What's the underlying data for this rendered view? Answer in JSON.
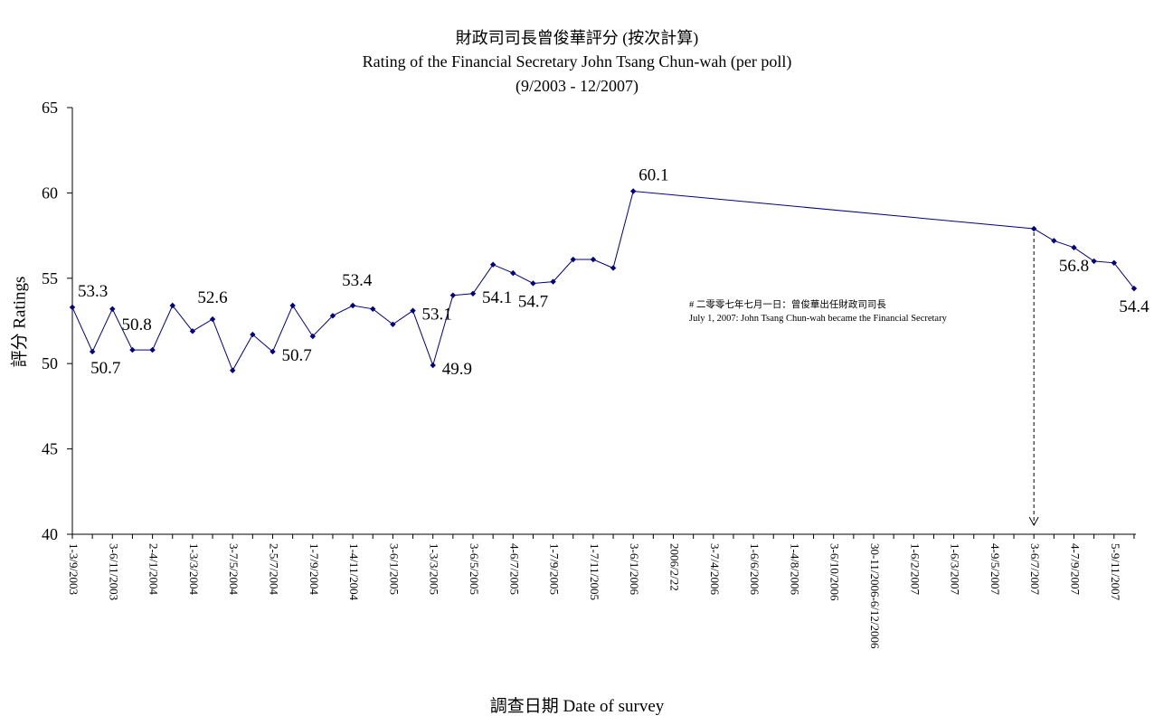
{
  "chart_data": {
    "type": "line",
    "title": "財政司司長曾俊華評分 (按次計算)",
    "subtitle": "Rating of the Financial Secretary John Tsang Chun-wah (per poll)",
    "period": "(9/2003 - 12/2007)",
    "xlabel": "調查日期 Date of survey",
    "ylabel": "評分 Ratings",
    "ylim": [
      40,
      65
    ],
    "y_ticks": [
      40,
      45,
      50,
      55,
      60,
      65
    ],
    "x_tick_labels": [
      "1-3/9/2003",
      "3-6/11/2003",
      "2-4/1/2004",
      "1-3/3/2004",
      "3-7/5/2004",
      "2-5/7/2004",
      "1-7/9/2004",
      "1-4/11/2004",
      "3-6/1/2005",
      "1-3/3/2005",
      "3-6/5/2005",
      "4-6/7/2005",
      "1-7/9/2005",
      "1-7/11/2005",
      "3-6/1/2006",
      "2006/2/22",
      "3-7/4/2006",
      "1-6/6/2006",
      "1-4/8/2006",
      "3-6/10/2006",
      "30-11/2006-6/12/2006",
      "1-6/2/2007",
      "1-6/3/2007",
      "4-9/5/2007",
      "3-6/7/2007",
      "4-7/9/2007",
      "5-9/11/2007"
    ],
    "series": [
      {
        "color": "#000080",
        "points": [
          {
            "slot": 0,
            "y": 53.3
          },
          {
            "slot": 0.5,
            "y": 50.7
          },
          {
            "slot": 1,
            "y": 53.2
          },
          {
            "slot": 1.5,
            "y": 50.8
          },
          {
            "slot": 2,
            "y": 50.8
          },
          {
            "slot": 2.5,
            "y": 53.4
          },
          {
            "slot": 3,
            "y": 51.9
          },
          {
            "slot": 3.5,
            "y": 52.6
          },
          {
            "slot": 4,
            "y": 49.6
          },
          {
            "slot": 4.5,
            "y": 51.7
          },
          {
            "slot": 5,
            "y": 50.7
          },
          {
            "slot": 5.5,
            "y": 53.4
          },
          {
            "slot": 6,
            "y": 51.6
          },
          {
            "slot": 6.5,
            "y": 52.8
          },
          {
            "slot": 7,
            "y": 53.4
          },
          {
            "slot": 7.5,
            "y": 53.2
          },
          {
            "slot": 8,
            "y": 52.3
          },
          {
            "slot": 8.5,
            "y": 53.1
          },
          {
            "slot": 9,
            "y": 49.9
          },
          {
            "slot": 9.5,
            "y": 54.0
          },
          {
            "slot": 10,
            "y": 54.1
          },
          {
            "slot": 10.5,
            "y": 55.8
          },
          {
            "slot": 11,
            "y": 55.3
          },
          {
            "slot": 11.5,
            "y": 54.7
          },
          {
            "slot": 12,
            "y": 54.8
          },
          {
            "slot": 12.5,
            "y": 56.1
          },
          {
            "slot": 13,
            "y": 56.1
          },
          {
            "slot": 13.5,
            "y": 55.6
          },
          {
            "slot": 14,
            "y": 60.1
          },
          {
            "slot": 24,
            "y": 57.9
          },
          {
            "slot": 24.5,
            "y": 57.2
          },
          {
            "slot": 25,
            "y": 56.8
          },
          {
            "slot": 25.5,
            "y": 56.0
          },
          {
            "slot": 26,
            "y": 55.9
          },
          {
            "slot": 26.5,
            "y": 54.4
          }
        ]
      }
    ],
    "data_labels": [
      {
        "slot": 0,
        "y": 53.3,
        "text": "53.3",
        "pos": "above-right"
      },
      {
        "slot": 0.5,
        "y": 50.7,
        "text": "50.7",
        "pos": "below-left"
      },
      {
        "slot": 1.5,
        "y": 50.8,
        "text": "50.8",
        "pos": "above-left"
      },
      {
        "slot": 3.5,
        "y": 52.6,
        "text": "52.6",
        "pos": "above"
      },
      {
        "slot": 5,
        "y": 50.7,
        "text": "50.7",
        "pos": "right"
      },
      {
        "slot": 7,
        "y": 53.4,
        "text": "53.4",
        "pos": "above-left"
      },
      {
        "slot": 8.5,
        "y": 53.1,
        "text": "53.1",
        "pos": "right"
      },
      {
        "slot": 9,
        "y": 49.9,
        "text": "49.9",
        "pos": "right"
      },
      {
        "slot": 10,
        "y": 54.1,
        "text": "54.1",
        "pos": "right"
      },
      {
        "slot": 11.5,
        "y": 54.7,
        "text": "54.7",
        "pos": "below"
      },
      {
        "slot": 14,
        "y": 60.1,
        "text": "60.1",
        "pos": "above-right"
      },
      {
        "slot": 25,
        "y": 56.8,
        "text": "56.8",
        "pos": "below"
      },
      {
        "slot": 26.5,
        "y": 54.4,
        "text": "54.4",
        "pos": "below"
      }
    ],
    "annotation": {
      "slot": 24,
      "line1": "# 二零零七年七月一日：曾俊華出任財政司司長",
      "line2": "July 1, 2007: John Tsang Chun-wah became the Financial Secretary"
    },
    "legend": "none",
    "grid": false
  }
}
